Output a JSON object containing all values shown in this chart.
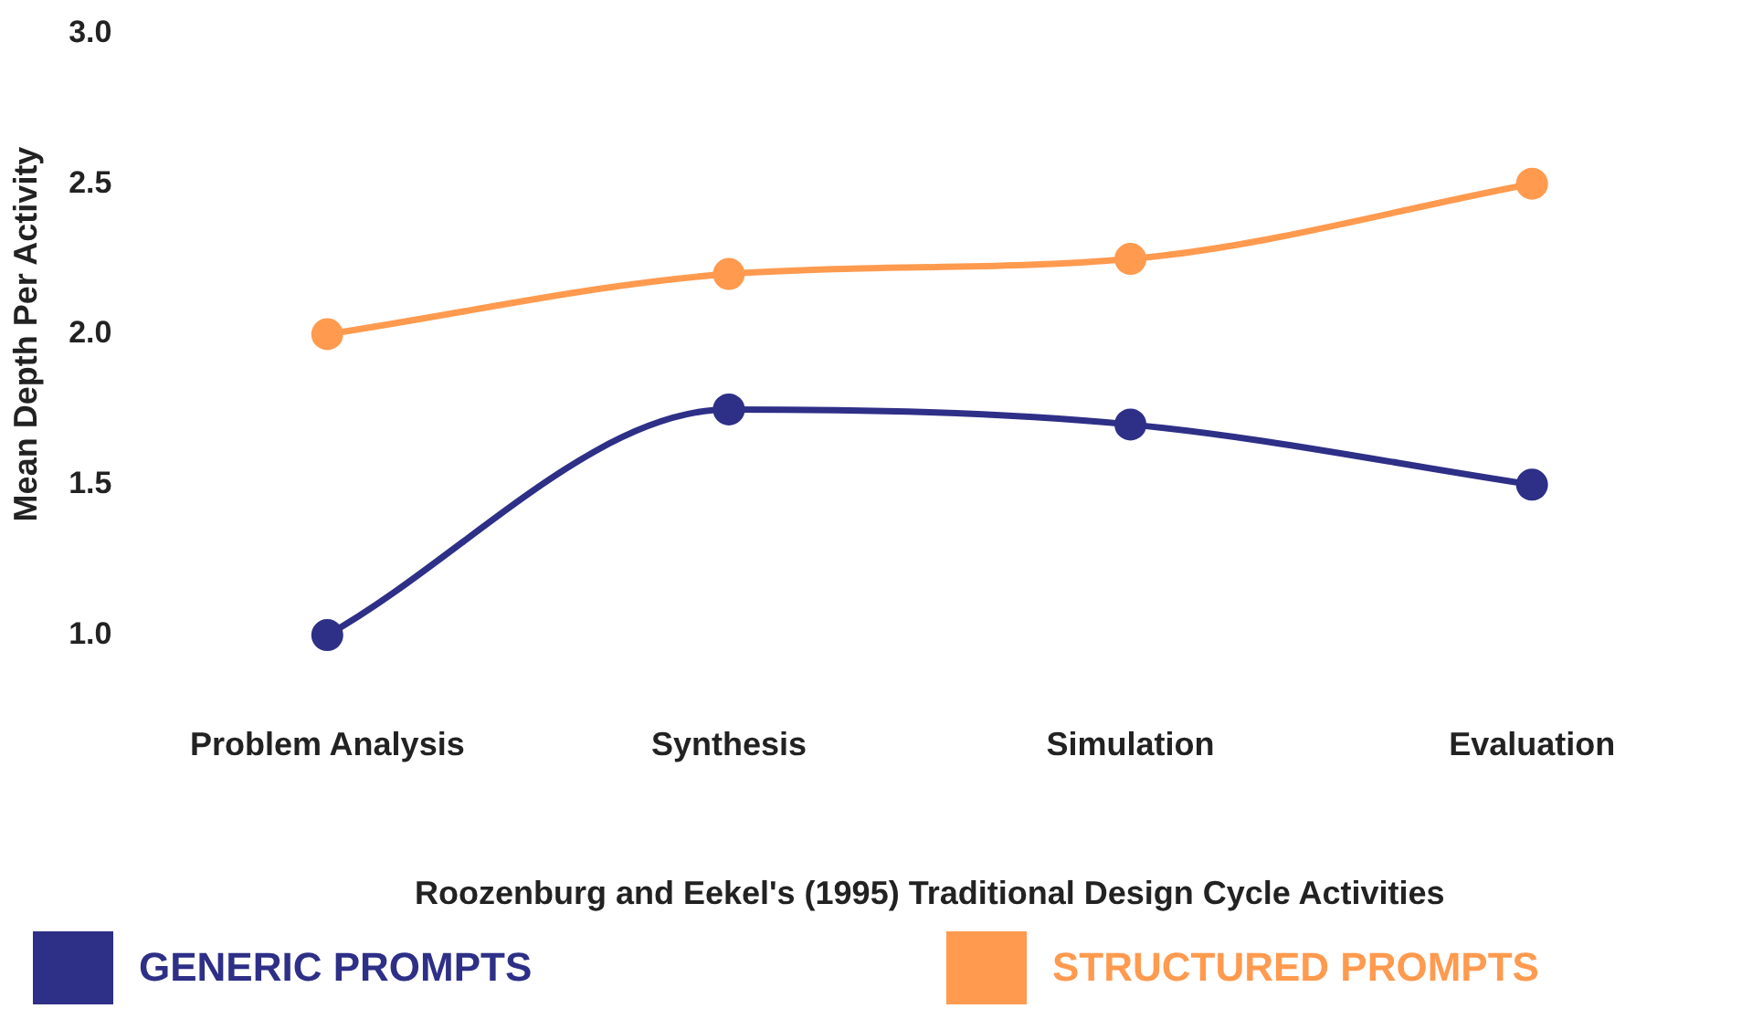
{
  "chart_data": {
    "type": "line",
    "xlabel": "Roozenburg and Eekel's (1995) Traditional Design Cycle Activities",
    "ylabel": "Mean Depth Per Activity",
    "categories": [
      "Problem Analysis",
      "Synthesis",
      "Simulation",
      "Evaluation"
    ],
    "series": [
      {
        "name": "GENERIC PROMPTS",
        "color": "#2e2f87",
        "values": [
          1.0,
          1.75,
          1.7,
          1.5
        ]
      },
      {
        "name": "STRUCTURED PROMPTS",
        "color": "#ff9a4f",
        "values": [
          2.0,
          2.2,
          2.25,
          2.5
        ]
      }
    ],
    "ylim": [
      1.0,
      3.0
    ],
    "yticks": [
      {
        "value": 1.0,
        "label": "1.0"
      },
      {
        "value": 1.5,
        "label": "1.5"
      },
      {
        "value": 2.0,
        "label": "2.0"
      },
      {
        "value": 2.5,
        "label": "2.5"
      },
      {
        "value": 3.0,
        "label": "3.0"
      }
    ],
    "grid": false,
    "legend": "bottom",
    "marker": "circle",
    "line_style": "solid"
  }
}
